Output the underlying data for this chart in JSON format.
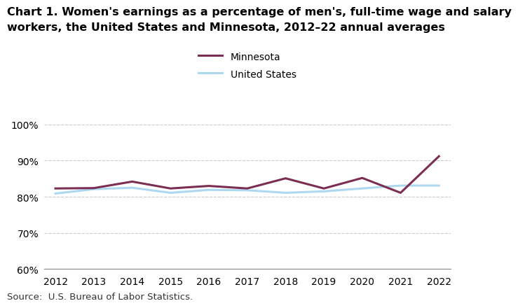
{
  "title_line1": "Chart 1. Women's earnings as a percentage of men's, full-time wage and salary",
  "title_line2": "workers, the United States and Minnesota, 2012–22 annual averages",
  "years": [
    2012,
    2013,
    2014,
    2015,
    2016,
    2017,
    2018,
    2019,
    2020,
    2021,
    2022
  ],
  "minnesota": [
    82.3,
    82.4,
    84.2,
    82.3,
    83.0,
    82.3,
    85.1,
    82.3,
    85.2,
    81.1,
    91.2
  ],
  "united_states": [
    80.9,
    82.1,
    82.5,
    81.1,
    81.9,
    81.8,
    81.1,
    81.5,
    82.3,
    83.1,
    83.1
  ],
  "minnesota_color": "#7B2D52",
  "us_color": "#ADD8F0",
  "ylim": [
    60,
    102
  ],
  "yticks": [
    60,
    70,
    80,
    90,
    100
  ],
  "xlim": [
    2011.7,
    2022.3
  ],
  "legend_labels": [
    "Minnesota",
    "United States"
  ],
  "source_text": "Source:  U.S. Bureau of Labor Statistics.",
  "title_fontsize": 11.5,
  "axis_fontsize": 10,
  "legend_fontsize": 10,
  "source_fontsize": 9.5,
  "line_width": 2.2,
  "grid_color": "#cccccc",
  "grid_linestyle": "--",
  "grid_linewidth": 0.8
}
